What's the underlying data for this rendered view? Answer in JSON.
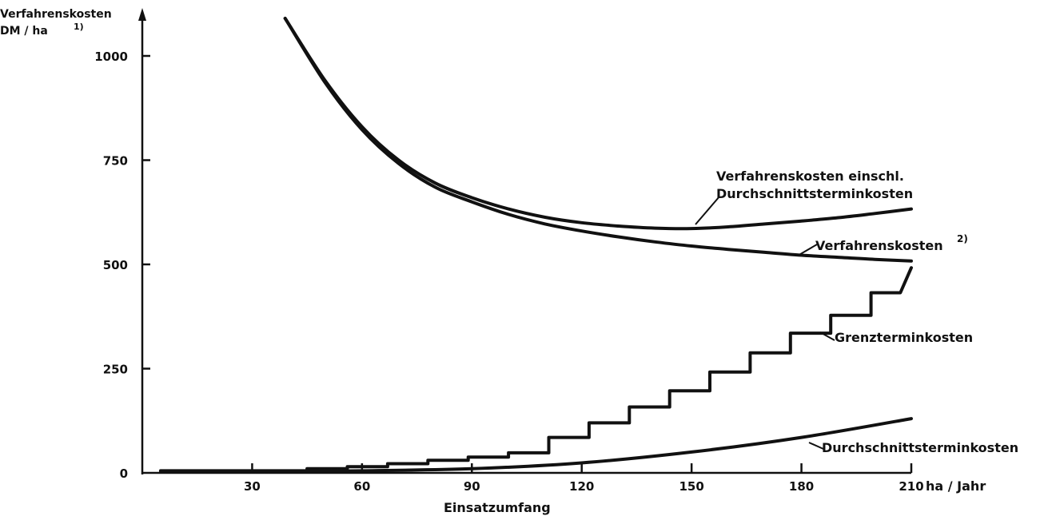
{
  "chart_data": {
    "type": "line",
    "ylabel_line1": "Verfahrenskosten",
    "ylabel_line2": "DM / ha",
    "ylabel_note": "1)",
    "xlabel": "Einsatzumfang",
    "xunit": "ha / Jahr",
    "xlim": [
      0,
      210
    ],
    "ylim": [
      0,
      1100
    ],
    "xticks": [
      30,
      60,
      90,
      120,
      150,
      180,
      210
    ],
    "yticks": [
      0,
      250,
      500,
      750,
      1000
    ],
    "series": [
      {
        "name": "Verfahrenskosten einschl. Durchschnittsterminkosten",
        "label_line1": "Verfahrenskosten einschl.",
        "label_line2": "Durchschnittsterminkosten",
        "x": [
          39,
          50,
          60,
          70,
          80,
          90,
          100,
          110,
          120,
          130,
          140,
          150,
          160,
          170,
          180,
          190,
          200,
          210
        ],
        "y": [
          1090,
          940,
          830,
          750,
          695,
          660,
          633,
          613,
          600,
          592,
          587,
          586,
          590,
          597,
          604,
          612,
          622,
          633
        ]
      },
      {
        "name": "Verfahrenskosten",
        "label_line1": "Verfahrenskosten",
        "note": "2)",
        "x": [
          39,
          50,
          60,
          70,
          80,
          90,
          100,
          110,
          120,
          130,
          140,
          150,
          160,
          170,
          180,
          190,
          200,
          210
        ],
        "y": [
          1090,
          935,
          823,
          742,
          685,
          650,
          620,
          597,
          580,
          566,
          554,
          544,
          536,
          529,
          522,
          517,
          512,
          508
        ]
      },
      {
        "name": "Grenzterminkosten",
        "label_line1": "Grenzterminkosten",
        "x": [
          5,
          45,
          45,
          56,
          56,
          67,
          67,
          78,
          78,
          89,
          89,
          100,
          100,
          111,
          111,
          122,
          122,
          133,
          133,
          144,
          144,
          155,
          155,
          166,
          166,
          177,
          177,
          188,
          188,
          199,
          199,
          207,
          210
        ],
        "y": [
          5,
          5,
          10,
          10,
          15,
          15,
          22,
          22,
          30,
          30,
          38,
          38,
          48,
          48,
          85,
          85,
          120,
          120,
          158,
          158,
          197,
          197,
          242,
          242,
          288,
          288,
          335,
          335,
          378,
          378,
          432,
          432,
          492
        ]
      },
      {
        "name": "Durchschnittsterminkosten",
        "label_line1": "Durchschnittsterminkosten",
        "x": [
          5,
          30,
          60,
          90,
          120,
          150,
          180,
          210
        ],
        "y": [
          2,
          3,
          5,
          10,
          24,
          50,
          85,
          130
        ]
      }
    ]
  }
}
